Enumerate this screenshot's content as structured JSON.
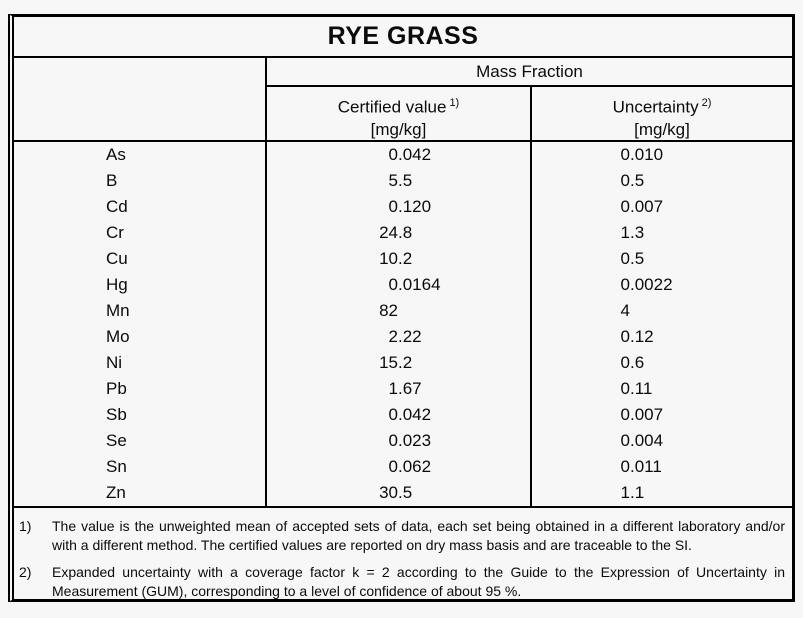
{
  "title": "RYE GRASS",
  "table": {
    "group_header": "Mass Fraction",
    "columns": [
      {
        "label": "Certified value",
        "sup": "1)",
        "unit": "[mg/kg]"
      },
      {
        "label": "Uncertainty",
        "sup": "2)",
        "unit": "[mg/kg]"
      }
    ],
    "rows": [
      {
        "element": "As",
        "certified": "0.042",
        "uncertainty": "0.010"
      },
      {
        "element": "B",
        "certified": "5.5",
        "uncertainty": "0.5"
      },
      {
        "element": "Cd",
        "certified": "0.120",
        "uncertainty": "0.007"
      },
      {
        "element": "Cr",
        "certified": "24.8",
        "uncertainty": "1.3"
      },
      {
        "element": "Cu",
        "certified": "10.2",
        "uncertainty": "0.5"
      },
      {
        "element": "Hg",
        "certified": "0.0164",
        "uncertainty": "0.0022"
      },
      {
        "element": "Mn",
        "certified": "82",
        "uncertainty": "4"
      },
      {
        "element": "Mo",
        "certified": "2.22",
        "uncertainty": "0.12"
      },
      {
        "element": "Ni",
        "certified": "15.2",
        "uncertainty": "0.6"
      },
      {
        "element": "Pb",
        "certified": "1.67",
        "uncertainty": "0.11"
      },
      {
        "element": "Sb",
        "certified": "0.042",
        "uncertainty": "0.007"
      },
      {
        "element": "Se",
        "certified": "0.023",
        "uncertainty": "0.004"
      },
      {
        "element": "Sn",
        "certified": "0.062",
        "uncertainty": "0.011"
      },
      {
        "element": "Zn",
        "certified": "30.5",
        "uncertainty": "1.1"
      }
    ]
  },
  "footnotes": [
    {
      "marker": "1)",
      "text": "The value is the unweighted mean of accepted sets of data, each set being obtained in a different laboratory and/or with a different method. The certified values are reported on dry mass basis and are traceable to the SI."
    },
    {
      "marker": "2)",
      "text": "Expanded uncertainty with a coverage factor k = 2 according to the Guide to the Expression of Uncertainty in Measurement (GUM), corresponding to a level of confidence of about 95 %."
    }
  ],
  "colors": {
    "paper": "#f7f7f7",
    "ink": "#0b0b0b",
    "border": "#000000"
  }
}
